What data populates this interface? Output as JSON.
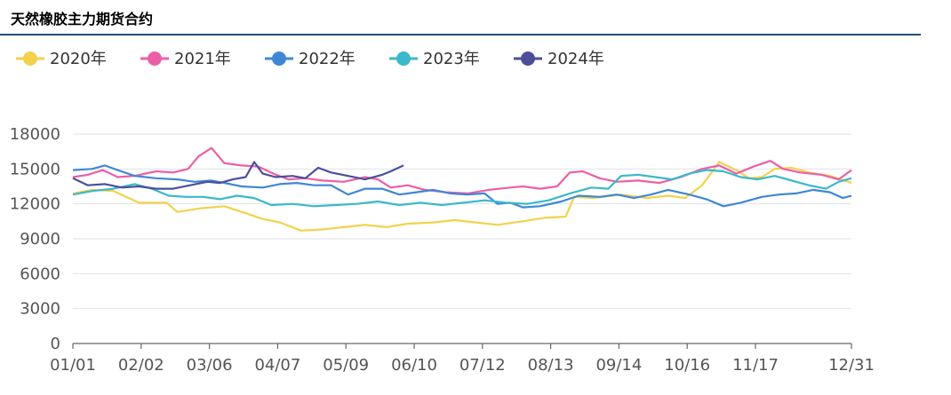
{
  "chart_data": {
    "type": "line",
    "title": "天然橡胶主力期货合约",
    "x_tick_labels": [
      "01/01",
      "02/02",
      "03/06",
      "04/07",
      "05/09",
      "06/10",
      "07/12",
      "08/13",
      "09/14",
      "10/16",
      "11/17",
      "12/31"
    ],
    "y_tick_labels": [
      "0",
      "3000",
      "6000",
      "9000",
      "12000",
      "15000",
      "18000"
    ],
    "ylim": [
      0,
      18000
    ],
    "grid": "horizontal",
    "legend_position": "top-left",
    "series": [
      {
        "name": "2020年",
        "color": "#f2d24c",
        "points": [
          [
            1,
            12900
          ],
          [
            10,
            13200
          ],
          [
            20,
            13100
          ],
          [
            32,
            12100
          ],
          [
            45,
            12100
          ],
          [
            50,
            11300
          ],
          [
            60,
            11600
          ],
          [
            72,
            11800
          ],
          [
            82,
            11200
          ],
          [
            90,
            10700
          ],
          [
            98,
            10400
          ],
          [
            108,
            9700
          ],
          [
            118,
            9800
          ],
          [
            128,
            10000
          ],
          [
            138,
            10200
          ],
          [
            148,
            10000
          ],
          [
            158,
            10300
          ],
          [
            170,
            10400
          ],
          [
            180,
            10600
          ],
          [
            190,
            10400
          ],
          [
            200,
            10200
          ],
          [
            212,
            10500
          ],
          [
            222,
            10800
          ],
          [
            232,
            10900
          ],
          [
            236,
            12600
          ],
          [
            245,
            12500
          ],
          [
            258,
            12800
          ],
          [
            270,
            12500
          ],
          [
            280,
            12700
          ],
          [
            288,
            12500
          ],
          [
            296,
            13600
          ],
          [
            304,
            15600
          ],
          [
            312,
            14900
          ],
          [
            318,
            14200
          ],
          [
            324,
            14300
          ],
          [
            330,
            15000
          ],
          [
            338,
            15100
          ],
          [
            346,
            14700
          ],
          [
            356,
            14400
          ],
          [
            366,
            13800
          ]
        ]
      },
      {
        "name": "2021年",
        "color": "#ec5fa6",
        "points": [
          [
            1,
            14300
          ],
          [
            8,
            14500
          ],
          [
            15,
            14900
          ],
          [
            22,
            14300
          ],
          [
            30,
            14400
          ],
          [
            40,
            14800
          ],
          [
            48,
            14700
          ],
          [
            55,
            15000
          ],
          [
            60,
            16100
          ],
          [
            66,
            16800
          ],
          [
            72,
            15500
          ],
          [
            80,
            15300
          ],
          [
            88,
            15200
          ],
          [
            95,
            14600
          ],
          [
            102,
            14100
          ],
          [
            110,
            14200
          ],
          [
            118,
            14000
          ],
          [
            128,
            13900
          ],
          [
            138,
            14300
          ],
          [
            144,
            14100
          ],
          [
            150,
            13400
          ],
          [
            158,
            13600
          ],
          [
            166,
            13200
          ],
          [
            176,
            13000
          ],
          [
            186,
            12900
          ],
          [
            196,
            13200
          ],
          [
            206,
            13400
          ],
          [
            212,
            13500
          ],
          [
            220,
            13300
          ],
          [
            228,
            13500
          ],
          [
            234,
            14700
          ],
          [
            240,
            14800
          ],
          [
            248,
            14200
          ],
          [
            256,
            13900
          ],
          [
            266,
            14000
          ],
          [
            276,
            13800
          ],
          [
            286,
            14300
          ],
          [
            296,
            15000
          ],
          [
            304,
            15300
          ],
          [
            312,
            14600
          ],
          [
            320,
            15200
          ],
          [
            328,
            15700
          ],
          [
            334,
            15000
          ],
          [
            342,
            14700
          ],
          [
            352,
            14500
          ],
          [
            360,
            14100
          ],
          [
            366,
            14900
          ]
        ]
      },
      {
        "name": "2022年",
        "color": "#3f87d6",
        "points": [
          [
            1,
            14900
          ],
          [
            10,
            15000
          ],
          [
            16,
            15300
          ],
          [
            22,
            14900
          ],
          [
            30,
            14400
          ],
          [
            40,
            14200
          ],
          [
            50,
            14100
          ],
          [
            58,
            13900
          ],
          [
            66,
            14000
          ],
          [
            72,
            13800
          ],
          [
            80,
            13500
          ],
          [
            90,
            13400
          ],
          [
            98,
            13700
          ],
          [
            106,
            13800
          ],
          [
            114,
            13600
          ],
          [
            122,
            13600
          ],
          [
            130,
            12800
          ],
          [
            138,
            13300
          ],
          [
            146,
            13300
          ],
          [
            154,
            12800
          ],
          [
            162,
            13000
          ],
          [
            170,
            13200
          ],
          [
            178,
            12900
          ],
          [
            186,
            12800
          ],
          [
            194,
            12900
          ],
          [
            200,
            12000
          ],
          [
            206,
            12100
          ],
          [
            212,
            11700
          ],
          [
            220,
            11800
          ],
          [
            230,
            12200
          ],
          [
            238,
            12700
          ],
          [
            248,
            12600
          ],
          [
            256,
            12800
          ],
          [
            264,
            12500
          ],
          [
            272,
            12800
          ],
          [
            280,
            13200
          ],
          [
            290,
            12800
          ],
          [
            298,
            12400
          ],
          [
            306,
            11800
          ],
          [
            314,
            12100
          ],
          [
            324,
            12600
          ],
          [
            332,
            12800
          ],
          [
            340,
            12900
          ],
          [
            348,
            13200
          ],
          [
            356,
            13000
          ],
          [
            362,
            12500
          ],
          [
            366,
            12700
          ]
        ]
      },
      {
        "name": "2023年",
        "color": "#3bb8c9",
        "points": [
          [
            1,
            12800
          ],
          [
            10,
            13100
          ],
          [
            20,
            13300
          ],
          [
            30,
            13700
          ],
          [
            38,
            13300
          ],
          [
            46,
            12700
          ],
          [
            54,
            12600
          ],
          [
            62,
            12600
          ],
          [
            70,
            12400
          ],
          [
            78,
            12700
          ],
          [
            86,
            12500
          ],
          [
            94,
            11900
          ],
          [
            104,
            12000
          ],
          [
            114,
            11800
          ],
          [
            124,
            11900
          ],
          [
            134,
            12000
          ],
          [
            144,
            12200
          ],
          [
            154,
            11900
          ],
          [
            164,
            12100
          ],
          [
            174,
            11900
          ],
          [
            184,
            12100
          ],
          [
            194,
            12300
          ],
          [
            204,
            12100
          ],
          [
            214,
            12000
          ],
          [
            224,
            12300
          ],
          [
            234,
            12900
          ],
          [
            244,
            13400
          ],
          [
            252,
            13300
          ],
          [
            258,
            14400
          ],
          [
            266,
            14500
          ],
          [
            274,
            14300
          ],
          [
            282,
            14100
          ],
          [
            290,
            14600
          ],
          [
            298,
            14900
          ],
          [
            306,
            14800
          ],
          [
            314,
            14300
          ],
          [
            322,
            14100
          ],
          [
            330,
            14400
          ],
          [
            338,
            14000
          ],
          [
            346,
            13600
          ],
          [
            354,
            13300
          ],
          [
            360,
            13900
          ],
          [
            366,
            14200
          ]
        ]
      },
      {
        "name": "2024年",
        "color": "#4b4f9a",
        "points": [
          [
            1,
            14200
          ],
          [
            8,
            13600
          ],
          [
            16,
            13700
          ],
          [
            24,
            13400
          ],
          [
            32,
            13500
          ],
          [
            40,
            13300
          ],
          [
            48,
            13300
          ],
          [
            56,
            13600
          ],
          [
            64,
            13900
          ],
          [
            70,
            13800
          ],
          [
            76,
            14100
          ],
          [
            82,
            14300
          ],
          [
            86,
            15600
          ],
          [
            90,
            14600
          ],
          [
            96,
            14300
          ],
          [
            104,
            14400
          ],
          [
            110,
            14200
          ],
          [
            116,
            15100
          ],
          [
            122,
            14700
          ],
          [
            130,
            14400
          ],
          [
            138,
            14100
          ],
          [
            146,
            14500
          ],
          [
            150,
            14800
          ],
          [
            156,
            15300
          ]
        ]
      }
    ]
  }
}
